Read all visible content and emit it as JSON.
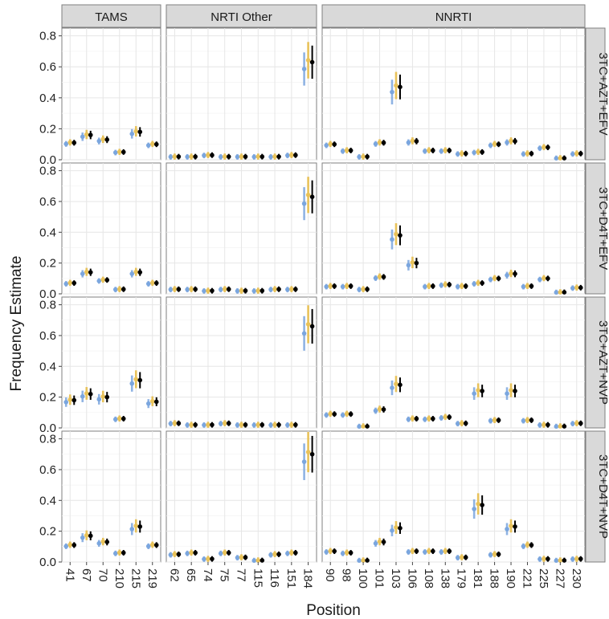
{
  "chart_data": {
    "type": "scatter",
    "subtype": "faceted point-range (frequency estimate with interval, several estimators per position)",
    "xlabel": "Position",
    "ylabel": "Frequency Estimate",
    "ylim": [
      0,
      0.85
    ],
    "yticks": [
      0.0,
      0.2,
      0.4,
      0.6,
      0.8
    ],
    "ytick_labels": [
      "0.0",
      "0.2",
      "0.4",
      "0.6",
      "0.8"
    ],
    "grid": true,
    "legend": "none",
    "series_colors": [
      "#7ba6de",
      "#e8c25a",
      "#000000"
    ],
    "columns": [
      {
        "label": "TAMS",
        "positions": [
          "41",
          "67",
          "70",
          "210",
          "215",
          "219"
        ]
      },
      {
        "label": "NRTI Other",
        "positions": [
          "62",
          "65",
          "74",
          "75",
          "77",
          "115",
          "116",
          "151",
          "184"
        ]
      },
      {
        "label": "NNRTI",
        "positions": [
          "90",
          "98",
          "100",
          "101",
          "103",
          "106",
          "108",
          "138",
          "179",
          "181",
          "188",
          "190",
          "221",
          "225",
          "227",
          "230"
        ]
      }
    ],
    "rows": [
      {
        "label": "3TC+AZT+EFV",
        "values": [
          [
            0.11,
            0.16,
            0.13,
            0.05,
            0.18,
            0.1
          ],
          [
            0.02,
            0.02,
            0.03,
            0.02,
            0.02,
            0.02,
            0.02,
            0.03,
            0.63
          ],
          [
            0.1,
            0.06,
            0.02,
            0.11,
            0.47,
            0.12,
            0.06,
            0.06,
            0.04,
            0.05,
            0.1,
            0.12,
            0.04,
            0.08,
            0.01,
            0.04
          ]
        ]
      },
      {
        "label": "3TC+D4T+EFV",
        "values": [
          [
            0.07,
            0.14,
            0.09,
            0.03,
            0.14,
            0.07
          ],
          [
            0.03,
            0.03,
            0.02,
            0.03,
            0.02,
            0.02,
            0.03,
            0.03,
            0.63
          ],
          [
            0.05,
            0.05,
            0.03,
            0.11,
            0.38,
            0.2,
            0.05,
            0.06,
            0.05,
            0.07,
            0.1,
            0.13,
            0.05,
            0.1,
            0.01,
            0.04
          ]
        ]
      },
      {
        "label": "3TC+AZT+NVP",
        "values": [
          [
            0.18,
            0.22,
            0.2,
            0.06,
            0.31,
            0.17
          ],
          [
            0.03,
            0.02,
            0.02,
            0.03,
            0.02,
            0.02,
            0.02,
            0.02,
            0.66
          ],
          [
            0.09,
            0.09,
            0.01,
            0.12,
            0.28,
            0.06,
            0.06,
            0.07,
            0.03,
            0.24,
            0.05,
            0.24,
            0.05,
            0.02,
            0.01,
            0.03
          ]
        ]
      },
      {
        "label": "3TC+D4T+NVP",
        "values": [
          [
            0.11,
            0.17,
            0.13,
            0.06,
            0.23,
            0.11
          ],
          [
            0.05,
            0.06,
            0.02,
            0.06,
            0.03,
            0.01,
            0.05,
            0.06,
            0.7
          ],
          [
            0.07,
            0.06,
            0.01,
            0.13,
            0.22,
            0.07,
            0.07,
            0.07,
            0.03,
            0.37,
            0.05,
            0.23,
            0.11,
            0.02,
            0.01,
            0.02
          ]
        ]
      }
    ]
  }
}
